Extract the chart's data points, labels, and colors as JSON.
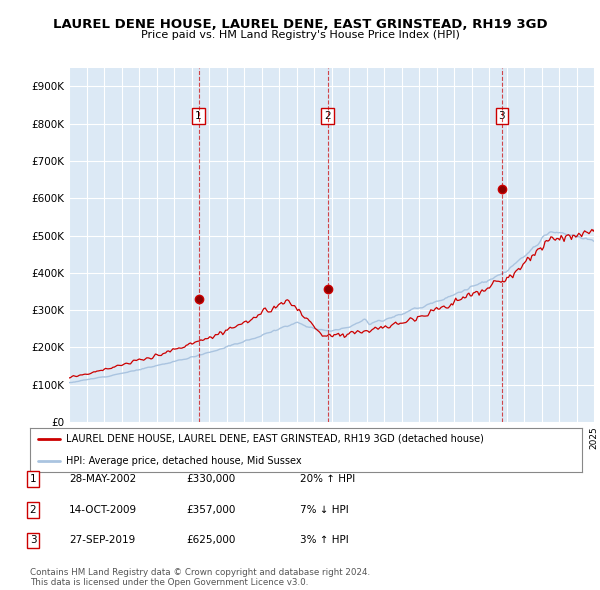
{
  "title": "LAUREL DENE HOUSE, LAUREL DENE, EAST GRINSTEAD, RH19 3GD",
  "subtitle": "Price paid vs. HM Land Registry's House Price Index (HPI)",
  "bg_color": "#dce9f5",
  "hpi_color": "#aac4e0",
  "price_color": "#cc0000",
  "sale_dates": [
    2002.4,
    2009.79,
    2019.74
  ],
  "sale_prices": [
    330000,
    357000,
    625000
  ],
  "sale_labels": [
    "1",
    "2",
    "3"
  ],
  "legend_line1": "LAUREL DENE HOUSE, LAUREL DENE, EAST GRINSTEAD, RH19 3GD (detached house)",
  "legend_line2": "HPI: Average price, detached house, Mid Sussex",
  "table": [
    [
      "1",
      "28-MAY-2002",
      "£330,000",
      "20% ↑ HPI"
    ],
    [
      "2",
      "14-OCT-2009",
      "£357,000",
      "7% ↓ HPI"
    ],
    [
      "3",
      "27-SEP-2019",
      "£625,000",
      "3% ↑ HPI"
    ]
  ],
  "footer": "Contains HM Land Registry data © Crown copyright and database right 2024.\nThis data is licensed under the Open Government Licence v3.0.",
  "ylim": [
    0,
    950000
  ],
  "yticks": [
    0,
    100000,
    200000,
    300000,
    400000,
    500000,
    600000,
    700000,
    800000,
    900000
  ],
  "xstart": 1995,
  "xend": 2025
}
